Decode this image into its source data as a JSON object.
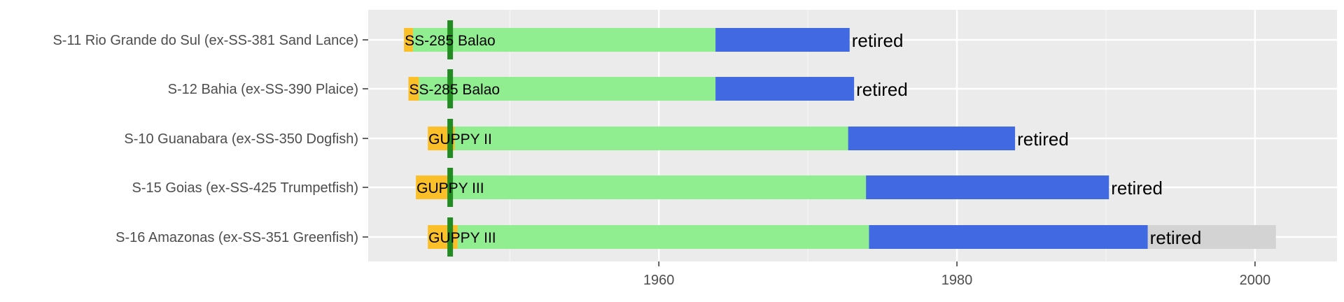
{
  "chart_data": {
    "type": "bar",
    "orientation": "horizontal-timeline",
    "title": "",
    "xlabel": "",
    "ylabel": "",
    "xlim": [
      1940.5,
      2005.5
    ],
    "x_ticks": [
      1960,
      1980,
      2000
    ],
    "grid": true,
    "colors": {
      "panel": "#ebebeb",
      "grid_major": "#ffffff",
      "grid_minor": "#f5f5f5",
      "construction": "#fbbf2a",
      "us_service": "#90ee90",
      "brazil_service": "#4169e1",
      "post_retirement": "#d3d3d3",
      "marker": "#228b22"
    },
    "marker_year": 1946,
    "categories": [
      "S-11 Rio Grande do Sul (ex-SS-381 Sand Lance)",
      "S-12 Bahia (ex-SS-390 Plaice)",
      "S-10 Guanabara (ex-SS-350 Dogfish)",
      "S-15 Goias (ex-SS-425 Trumpetfish)",
      "S-16 Amazonas (ex-SS-351 Greenfish)"
    ],
    "rows": [
      {
        "name": "S-11 Rio Grande do Sul (ex-SS-381 Sand Lance)",
        "construction": [
          1942.9,
          1943.5
        ],
        "us_service": [
          1943.5,
          1963.8
        ],
        "brazil_service": [
          1963.8,
          1972.8
        ],
        "post": null,
        "class_label": "SS-285 Balao",
        "status": "retired"
      },
      {
        "name": "S-12 Bahia (ex-SS-390 Plaice)",
        "construction": [
          1943.2,
          1943.9
        ],
        "us_service": [
          1943.9,
          1963.8
        ],
        "brazil_service": [
          1963.8,
          1973.1
        ],
        "post": null,
        "class_label": "SS-285 Balao",
        "status": "retired"
      },
      {
        "name": "S-10 Guanabara (ex-SS-350 Dogfish)",
        "construction": [
          1944.5,
          1946.3
        ],
        "us_service": [
          1946.3,
          1972.7
        ],
        "brazil_service": [
          1972.7,
          1983.9
        ],
        "post": null,
        "class_label": "GUPPY II",
        "status": "retired"
      },
      {
        "name": "S-15 Goias (ex-SS-425 Trumpetfish)",
        "construction": [
          1943.7,
          1946.1
        ],
        "us_service": [
          1946.1,
          1973.9
        ],
        "brazil_service": [
          1973.9,
          1990.2
        ],
        "post": null,
        "class_label": "GUPPY III",
        "status": "retired"
      },
      {
        "name": "S-16 Amazonas (ex-SS-351 Greenfish)",
        "construction": [
          1944.5,
          1946.5
        ],
        "us_service": [
          1946.5,
          1974.1
        ],
        "brazil_service": [
          1974.1,
          1992.8
        ],
        "post": [
          1992.8,
          2001.4
        ],
        "class_label": "GUPPY III",
        "status": "retired"
      }
    ]
  }
}
